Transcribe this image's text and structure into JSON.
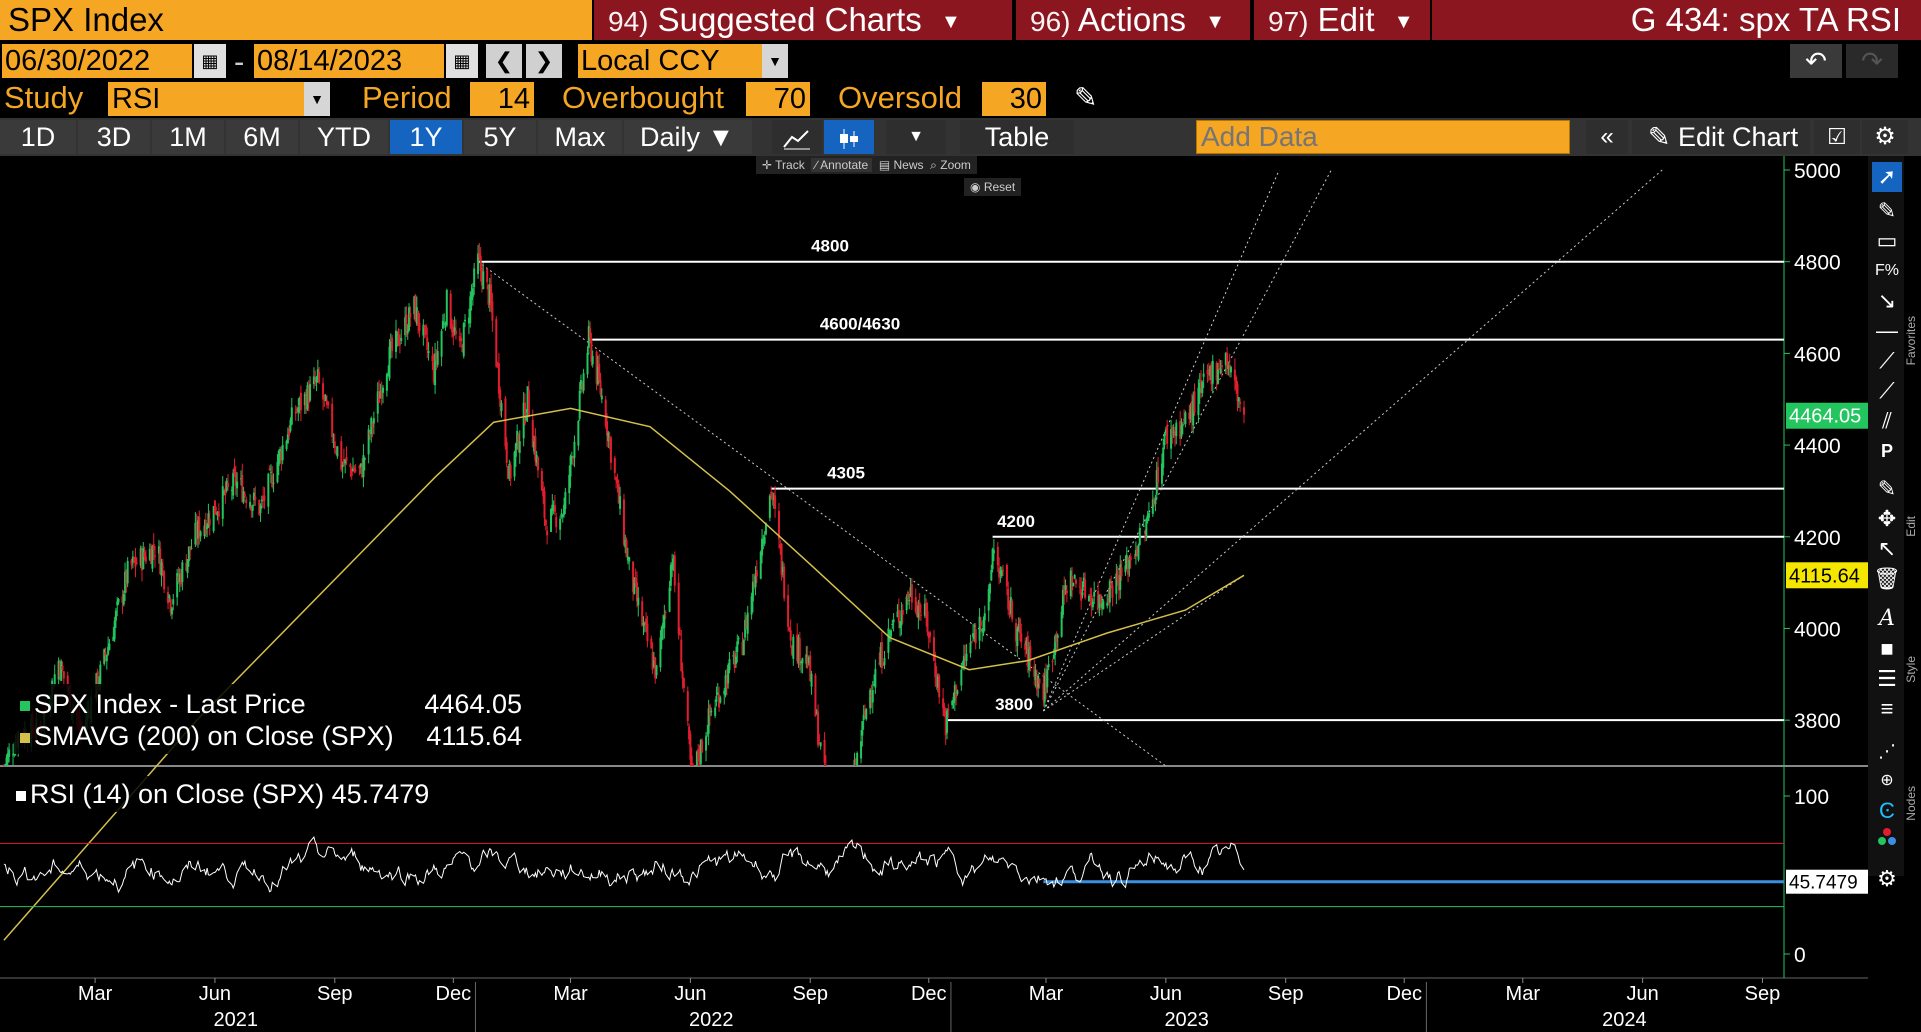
{
  "header": {
    "security": "SPX Index",
    "menus": [
      {
        "num": "94)",
        "label": "Suggested Charts"
      },
      {
        "num": "96)",
        "label": "Actions"
      },
      {
        "num": "97)",
        "label": "Edit"
      }
    ],
    "function_title": "G 434: spx TA RSI"
  },
  "dates": {
    "start": "06/30/2022",
    "end": "08/14/2023",
    "currency": "Local CCY"
  },
  "study": {
    "label": "Study",
    "value": "RSI",
    "period_label": "Period",
    "period": "14",
    "overbought_label": "Overbought",
    "overbought": "70",
    "oversold_label": "Oversold",
    "oversold": "30"
  },
  "periods": [
    "1D",
    "3D",
    "1M",
    "6M",
    "YTD",
    "1Y",
    "5Y",
    "Max"
  ],
  "active_period": "1Y",
  "frequency": "Daily",
  "table_label": "Table",
  "add_data_placeholder": "Add Data",
  "edit_chart_label": "Edit Chart",
  "mini_toolbar": {
    "track": "Track",
    "annotate": "Annotate",
    "news": "News",
    "zoom": "Zoom",
    "reset": "Reset"
  },
  "side_labels": {
    "favorites": "Favorites",
    "edit": "Edit",
    "style": "Style",
    "nodes": "Nodes"
  },
  "colors": {
    "accent": "#f5a623",
    "menu_bg": "#8b1620",
    "price_up": "#22c55e",
    "price_down": "#e11d2e",
    "sma": "#d4c04a",
    "rsi_ob": "#e11d2e",
    "rsi_os": "#22c55e",
    "rsi_level": "#3b8fe0"
  },
  "chart_data": [
    {
      "type": "candlestick",
      "series": [
        {
          "name": "SPX Index - Last Price",
          "last": "4464.05"
        },
        {
          "name": "SMAVG (200) on Close (SPX)",
          "last": "4115.64"
        }
      ],
      "ylim": [
        3700,
        5000
      ],
      "yticks": [
        "5000",
        "4800",
        "4600",
        "4400",
        "4200",
        "4000",
        "3800"
      ],
      "x_month_ticks": [
        "Mar",
        "Jun",
        "Sep",
        "Dec",
        "Mar",
        "Jun",
        "Sep",
        "Dec",
        "Mar",
        "Jun",
        "Sep",
        "Dec",
        "Mar",
        "Jun",
        "Sep"
      ],
      "x_year_ticks": [
        "2021",
        "2022",
        "2023",
        "2024"
      ],
      "levels": [
        {
          "label": "4800",
          "value": 4800
        },
        {
          "label": "4600/4630",
          "value": 4630
        },
        {
          "label": "4305",
          "value": 4305
        },
        {
          "label": "4200",
          "value": 4200
        },
        {
          "label": "3800",
          "value": 3800
        }
      ],
      "close_path": [
        [
          "2021-01-04",
          3700
        ],
        [
          "2021-01-15",
          3770
        ],
        [
          "2021-02-01",
          3780
        ],
        [
          "2021-02-15",
          3930
        ],
        [
          "2021-03-04",
          3770
        ],
        [
          "2021-03-20",
          3910
        ],
        [
          "2021-04-10",
          4130
        ],
        [
          "2021-05-01",
          4180
        ],
        [
          "2021-05-12",
          4060
        ],
        [
          "2021-06-01",
          4210
        ],
        [
          "2021-07-01",
          4320
        ],
        [
          "2021-07-20",
          4260
        ],
        [
          "2021-08-15",
          4470
        ],
        [
          "2021-09-02",
          4540
        ],
        [
          "2021-09-20",
          4360
        ],
        [
          "2021-10-05",
          4340
        ],
        [
          "2021-10-25",
          4580
        ],
        [
          "2021-11-15",
          4700
        ],
        [
          "2021-11-30",
          4560
        ],
        [
          "2021-12-10",
          4710
        ],
        [
          "2021-12-20",
          4600
        ],
        [
          "2022-01-03",
          4800
        ],
        [
          "2022-01-12",
          4720
        ],
        [
          "2022-01-27",
          4330
        ],
        [
          "2022-02-10",
          4500
        ],
        [
          "2022-02-24",
          4230
        ],
        [
          "2022-03-10",
          4260
        ],
        [
          "2022-03-29",
          4630
        ],
        [
          "2022-04-10",
          4480
        ],
        [
          "2022-04-29",
          4130
        ],
        [
          "2022-05-10",
          4000
        ],
        [
          "2022-05-20",
          3900
        ],
        [
          "2022-06-01",
          4160
        ],
        [
          "2022-06-16",
          3670
        ],
        [
          "2022-07-01",
          3820
        ],
        [
          "2022-07-25",
          3970
        ],
        [
          "2022-08-16",
          4305
        ],
        [
          "2022-09-01",
          3970
        ],
        [
          "2022-09-13",
          3930
        ],
        [
          "2022-09-30",
          3600
        ],
        [
          "2022-10-12",
          3580
        ],
        [
          "2022-10-31",
          3870
        ],
        [
          "2022-11-15",
          3990
        ],
        [
          "2022-12-01",
          4080
        ],
        [
          "2022-12-13",
          4020
        ],
        [
          "2022-12-28",
          3790
        ],
        [
          "2023-01-10",
          3920
        ],
        [
          "2023-01-31",
          4070
        ],
        [
          "2023-02-02",
          4180
        ],
        [
          "2023-02-20",
          4000
        ],
        [
          "2023-03-13",
          3860
        ],
        [
          "2023-04-01",
          4110
        ],
        [
          "2023-04-25",
          4060
        ],
        [
          "2023-05-15",
          4130
        ],
        [
          "2023-06-01",
          4230
        ],
        [
          "2023-06-15",
          4420
        ],
        [
          "2023-06-30",
          4450
        ],
        [
          "2023-07-20",
          4560
        ],
        [
          "2023-07-31",
          4590
        ],
        [
          "2023-08-14",
          4464
        ]
      ],
      "sma_path": [
        [
          "2021-01-04",
          3320
        ],
        [
          "2021-06-01",
          3800
        ],
        [
          "2021-12-01",
          4330
        ],
        [
          "2022-01-15",
          4450
        ],
        [
          "2022-03-15",
          4480
        ],
        [
          "2022-05-15",
          4440
        ],
        [
          "2022-07-15",
          4300
        ],
        [
          "2022-09-15",
          4140
        ],
        [
          "2022-11-15",
          3980
        ],
        [
          "2023-01-15",
          3910
        ],
        [
          "2023-03-01",
          3930
        ],
        [
          "2023-05-01",
          3990
        ],
        [
          "2023-06-30",
          4040
        ],
        [
          "2023-08-14",
          4116
        ]
      ],
      "trendlines": [
        {
          "from": [
            "2022-01-03",
            4800
          ],
          "to": [
            "2023-06-15",
            3700
          ]
        },
        {
          "from": [
            "2023-03-13",
            3820
          ],
          "to": [
            "2023-09-10",
            5000
          ]
        },
        {
          "from": [
            "2023-03-13",
            3820
          ],
          "to": [
            "2023-10-20",
            5000
          ]
        },
        {
          "from": [
            "2023-03-13",
            3820
          ],
          "to": [
            "2024-06-30",
            5000
          ]
        },
        {
          "from": [
            "2023-03-13",
            3820
          ],
          "to": [
            "2023-08-14",
            4116
          ]
        }
      ]
    },
    {
      "type": "line",
      "series": [
        {
          "name": "RSI (14) on Close (SPX)",
          "last": "45.7479"
        }
      ],
      "ylim": [
        0,
        100
      ],
      "yticks": [
        "100",
        "0"
      ],
      "overbought": 70,
      "oversold": 30
    }
  ]
}
